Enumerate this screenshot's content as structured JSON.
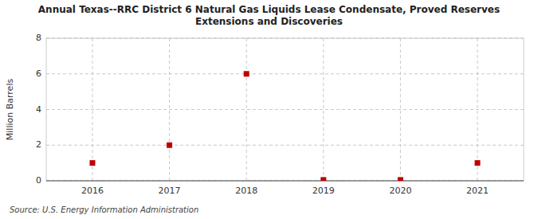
{
  "chart_data": {
    "type": "scatter",
    "title": "Annual Texas--RRC District 6 Natural Gas Liquids Lease Condensate, Proved Reserves\nExtensions and Discoveries",
    "y_label": "Million Barrels",
    "annotations": [
      "Source: U.S. Energy Information Administration"
    ],
    "x": [
      2016,
      2017,
      2018,
      2019,
      2020,
      2021
    ],
    "values": [
      1.0,
      2.0,
      6.0,
      0.05,
      0.05,
      1.0
    ],
    "xlim": [
      2015.4,
      2021.6
    ],
    "xticks": [
      2016,
      2017,
      2018,
      2019,
      2020,
      2021
    ],
    "ylim": [
      0,
      8
    ],
    "yticks": [
      0,
      2,
      4,
      6,
      8
    ],
    "color": "#c00000",
    "marker": "square",
    "grid": true
  }
}
